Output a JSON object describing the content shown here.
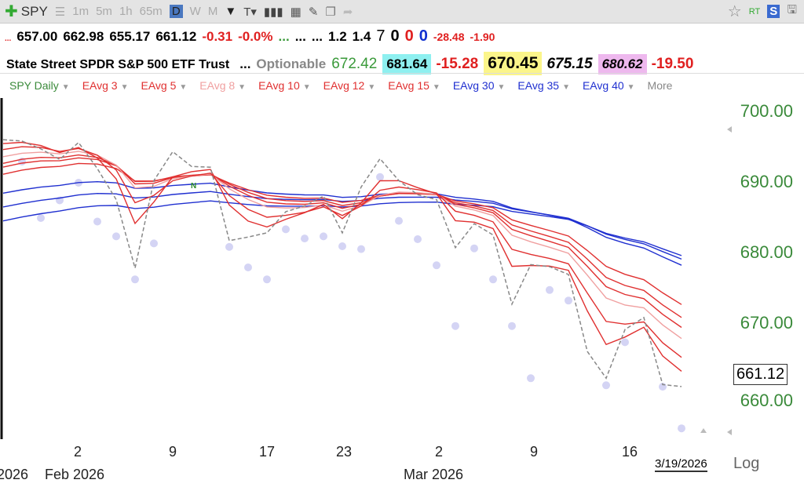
{
  "toolbar": {
    "symbol": "SPY",
    "intervals": [
      "1m",
      "5m",
      "1h",
      "65m",
      "D",
      "W",
      "M"
    ],
    "selected": "D",
    "rt": "RT",
    "s": "S"
  },
  "quote": {
    "dots": "...",
    "open": "657.00",
    "high": "662.98",
    "low": "655.17",
    "last": "661.12",
    "change": "-0.31",
    "pct": "-0.0%",
    "g": "...",
    "e1": "...",
    "e2": "...",
    "v1": "1.2",
    "v2": "1.4",
    "n1": "7",
    "n2": "0",
    "n3": "0",
    "n4": "0",
    "d1": "-28.48",
    "d2": "-1.90"
  },
  "info": {
    "name": "State Street SPDR S&P 500 ETF Trust",
    "dots": "...",
    "opt": "Optionable",
    "v1": "672.42",
    "v2": "681.64",
    "v3": "-15.28",
    "v4": "670.45",
    "v5": "675.15",
    "v6": "680.62",
    "v7": "-19.50",
    "colors": {
      "cyan": "#8ef0f0",
      "yellow": "#fbf58a",
      "pink": "#eeb8ee"
    }
  },
  "legend": [
    {
      "label": "SPY Daily",
      "color": "#3a8a3a"
    },
    {
      "label": "EAvg 3",
      "color": "#e03030"
    },
    {
      "label": "EAvg 5",
      "color": "#e03030"
    },
    {
      "label": "EAvg 8",
      "color": "#f0a0a0"
    },
    {
      "label": "EAvg 10",
      "color": "#e03030"
    },
    {
      "label": "EAvg 12",
      "color": "#e03030"
    },
    {
      "label": "EAvg 15",
      "color": "#e03030"
    },
    {
      "label": "EAvg 30",
      "color": "#2030d0"
    },
    {
      "label": "EAvg 35",
      "color": "#2030d0"
    },
    {
      "label": "EAvg 40",
      "color": "#2030d0"
    },
    {
      "label": "More",
      "color": "#888"
    }
  ],
  "axis": {
    "y": [
      "700.00",
      "690.00",
      "680.00",
      "670.00",
      "660.00"
    ],
    "x": [
      "2",
      "9",
      "17",
      "23",
      "2",
      "9",
      "16"
    ],
    "months": [
      "2026",
      "Feb 2026",
      "Mar 2026"
    ],
    "date": "3/19/2026",
    "log": "Log",
    "last": "661.12",
    "marker": "N"
  },
  "chart_data": {
    "type": "line",
    "ylim": [
      655,
      705
    ],
    "closes": [
      696.1,
      695.9,
      694.8,
      693.3,
      695.7,
      692.0,
      687.6,
      677.9,
      690.3,
      694.4,
      692.3,
      692.2,
      681.8,
      682.3,
      682.9,
      685.9,
      686.7,
      688.1,
      682.9,
      689.4,
      693.4,
      690.3,
      688.3,
      687.6,
      680.8,
      684.2,
      682.6,
      672.8,
      678.4,
      678.1,
      677.0,
      666.1,
      662.3,
      669.2,
      670.9,
      661.4,
      661.12
    ],
    "lows": [
      null,
      693,
      685,
      687.5,
      690,
      684.5,
      682.4,
      676.3,
      681.4,
      null,
      null,
      null,
      680.9,
      678,
      676.3,
      683.4,
      682.1,
      682.4,
      681,
      680.6,
      690.8,
      684.6,
      682,
      678.3,
      669.7,
      680.7,
      676.3,
      669.7,
      662.3,
      674.8,
      673.3,
      null,
      661.3,
      667.4,
      null,
      661.1,
      655.2
    ],
    "emas": [
      {
        "period": 3,
        "seed": 695,
        "color": "#e03030"
      },
      {
        "period": 5,
        "seed": 694,
        "color": "#e03030"
      },
      {
        "period": 8,
        "seed": 693,
        "color": "#f0a0a0"
      },
      {
        "period": 10,
        "seed": 692,
        "color": "#e03030"
      },
      {
        "period": 12,
        "seed": 691.5,
        "color": "#e03030"
      },
      {
        "period": 15,
        "seed": 690.5,
        "color": "#e03030"
      },
      {
        "period": 30,
        "seed": 688,
        "color": "#2030d0"
      },
      {
        "period": 35,
        "seed": 686,
        "color": "#2030d0"
      },
      {
        "period": 40,
        "seed": 684,
        "color": "#2030d0"
      }
    ]
  }
}
